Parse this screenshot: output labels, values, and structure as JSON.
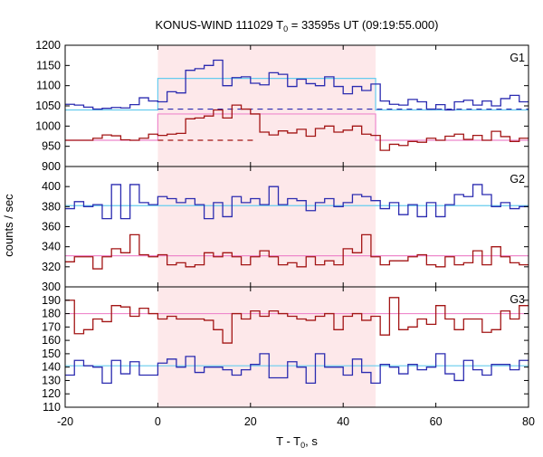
{
  "chart_data": {
    "type": "line",
    "title_prefix": "KONUS-WIND 111029 T",
    "title_sub": "0",
    "title_suffix": " = 33595s UT (09:19:55.000)",
    "xlabel_prefix": "T - T",
    "xlabel_sub": "0",
    "xlabel_suffix": ", s",
    "ylabel": "counts / sec",
    "xlim": [
      -20,
      80
    ],
    "x_ticks": [
      -20,
      0,
      20,
      40,
      60,
      80
    ],
    "highlight_interval": [
      0,
      47
    ],
    "colors": {
      "blue": "#2b2bb0",
      "red": "#a31515",
      "cyan": "#66ccee",
      "pink": "#ee88cc",
      "highlight": "#fde8ea"
    },
    "bin_edges": [
      -20,
      -18,
      -16,
      -14,
      -12,
      -10,
      -8,
      -6,
      -4,
      -2,
      0,
      2,
      4,
      6,
      8,
      10,
      12,
      14,
      16,
      18,
      20,
      22,
      24,
      26,
      28,
      30,
      32,
      34,
      36,
      38,
      40,
      42,
      44,
      46,
      48,
      50,
      52,
      54,
      56,
      58,
      60,
      62,
      64,
      66,
      68,
      70,
      72,
      74,
      76,
      78,
      80
    ],
    "panels": [
      {
        "label": "G1",
        "ylim": [
          900,
          1200
        ],
        "y_ticks": [
          900,
          950,
          1000,
          1050,
          1100,
          1150,
          1200
        ],
        "series": [
          {
            "color": "blue",
            "values": [
              1054,
              1052,
              1047,
              1042,
              1044,
              1046,
              1045,
              1053,
              1070,
              1062,
              1060,
              1085,
              1082,
              1138,
              1142,
              1150,
              1163,
              1100,
              1120,
              1122,
              1106,
              1102,
              1132,
              1128,
              1098,
              1116,
              1105,
              1100,
              1122,
              1098,
              1080,
              1098,
              1088,
              1104,
              1062,
              1054,
              1052,
              1066,
              1060,
              1042,
              1053,
              1040,
              1060,
              1064,
              1052,
              1062,
              1050,
              1068,
              1076,
              1060
            ]
          },
          {
            "color": "red",
            "values": [
              965,
              965,
              965,
              970,
              978,
              976,
              966,
              965,
              970,
              980,
              977,
              980,
              982,
              1018,
              1020,
              1025,
              1040,
              1020,
              1052,
              1042,
              1030,
              985,
              978,
              988,
              983,
              992,
              975,
              994,
              1000,
              985,
              990,
              1000,
              980,
              977,
              940,
              955,
              952,
              962,
              960,
              970,
              965,
              975,
              980,
              967,
              977,
              965,
              987,
              974,
              962,
              970
            ]
          }
        ],
        "background_levels": [
          {
            "color": "cyan",
            "segments": [
              [
                -20,
                0,
                1040
              ],
              [
                0,
                47,
                1118
              ],
              [
                47,
                80,
                1040
              ]
            ]
          },
          {
            "color": "pink",
            "segments": [
              [
                -20,
                0,
                965
              ],
              [
                0,
                21,
                1030
              ],
              [
                21,
                47,
                1030
              ],
              [
                47,
                80,
                965
              ]
            ]
          }
        ],
        "dashed_levels": [
          {
            "color": "blue",
            "from": 0,
            "to": 80,
            "value": 1042
          },
          {
            "color": "red",
            "from": 0,
            "to": 21,
            "value": 965
          }
        ]
      },
      {
        "label": "G2",
        "ylim": [
          300,
          420
        ],
        "y_ticks": [
          300,
          320,
          340,
          360,
          380,
          400
        ],
        "series": [
          {
            "color": "blue",
            "values": [
              378,
              385,
              380,
              382,
              368,
              402,
              368,
              402,
              384,
              382,
              390,
              388,
              384,
              388,
              382,
              368,
              384,
              370,
              390,
              384,
              388,
              382,
              400,
              382,
              388,
              386,
              376,
              384,
              388,
              380,
              384,
              392,
              390,
              386,
              378,
              384,
              372,
              382,
              370,
              384,
              370,
              382,
              392,
              390,
              402,
              392,
              380,
              384,
              378,
              380
            ]
          },
          {
            "color": "red",
            "values": [
              325,
              330,
              330,
              318,
              330,
              338,
              334,
              352,
              332,
              330,
              332,
              322,
              324,
              320,
              322,
              334,
              330,
              334,
              330,
              322,
              330,
              336,
              330,
              322,
              324,
              320,
              330,
              322,
              326,
              322,
              338,
              334,
              352,
              330,
              322,
              326,
              326,
              330,
              332,
              322,
              320,
              330,
              322,
              324,
              336,
              322,
              340,
              330,
              324,
              322
            ]
          }
        ],
        "background_levels": [
          {
            "color": "cyan",
            "segments": [
              [
                -20,
                80,
                381
              ]
            ]
          },
          {
            "color": "pink",
            "segments": [
              [
                -20,
                80,
                331
              ]
            ]
          }
        ],
        "dashed_levels": []
      },
      {
        "label": "G3",
        "ylim": [
          110,
          200
        ],
        "y_ticks": [
          110,
          120,
          130,
          140,
          150,
          160,
          170,
          180,
          190
        ],
        "series": [
          {
            "color": "blue",
            "values": [
              134,
              145,
              141,
              140,
              128,
              145,
              135,
              144,
              134,
              134,
              143,
              146,
              140,
              148,
              136,
              140,
              140,
              138,
              134,
              138,
              142,
              150,
              132,
              132,
              144,
              140,
              128,
              150,
              140,
              140,
              134,
              146,
              136,
              128,
              142,
              140,
              135,
              142,
              138,
              140,
              150,
              135,
              130,
              145,
              138,
              134,
              142,
              142,
              138,
              145
            ]
          },
          {
            "color": "red",
            "values": [
              190,
              165,
              168,
              176,
              174,
              186,
              185,
              178,
              184,
              180,
              176,
              178,
              176,
              176,
              176,
              175,
              168,
              158,
              180,
              176,
              182,
              178,
              182,
              180,
              178,
              176,
              175,
              178,
              180,
              168,
              178,
              180,
              175,
              178,
              164,
              192,
              168,
              170,
              176,
              172,
              186,
              176,
              168,
              176,
              176,
              166,
              168,
              182,
              176,
              186
            ]
          }
        ],
        "background_levels": [
          {
            "color": "cyan",
            "segments": [
              [
                -20,
                80,
                141
              ]
            ]
          },
          {
            "color": "pink",
            "segments": [
              [
                -20,
                80,
                180
              ]
            ]
          }
        ],
        "dashed_levels": []
      }
    ]
  }
}
